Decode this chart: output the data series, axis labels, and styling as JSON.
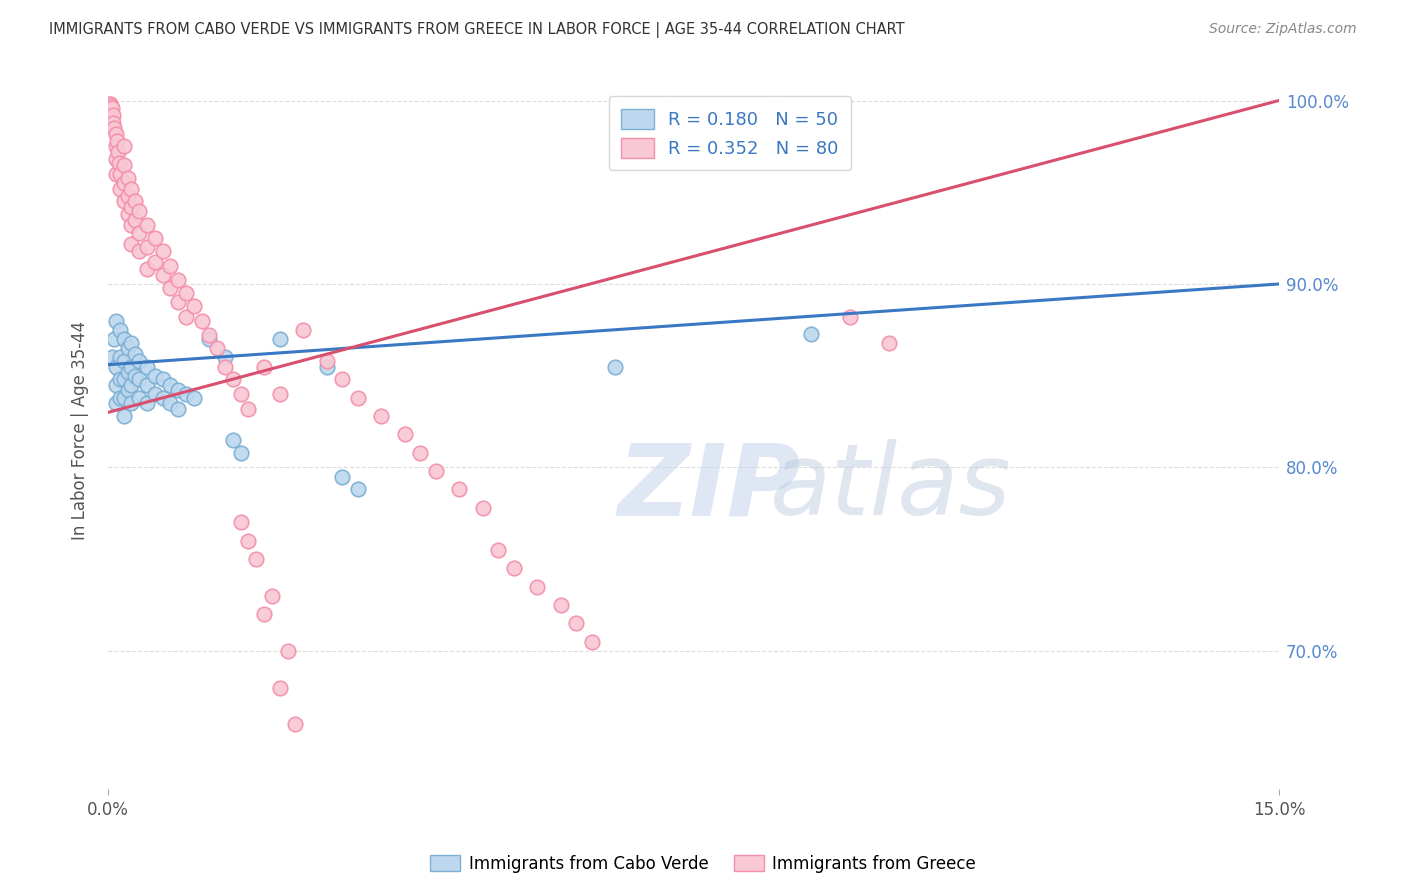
{
  "title": "IMMIGRANTS FROM CABO VERDE VS IMMIGRANTS FROM GREECE IN LABOR FORCE | AGE 35-44 CORRELATION CHART",
  "source": "Source: ZipAtlas.com",
  "xmin": 0.0,
  "xmax": 0.15,
  "ymin": 0.625,
  "ymax": 1.015,
  "ytick_vals": [
    0.7,
    0.8,
    0.9,
    1.0
  ],
  "ytick_labels": [
    "70.0%",
    "80.0%",
    "90.0%",
    "100.0%"
  ],
  "blue_color": "#7BAFD4",
  "pink_color": "#F48FAA",
  "blue_fill": "#BDD7EE",
  "pink_fill": "#F8C8D4",
  "line_blue": "#3B78C3",
  "line_pink": "#D94F6E",
  "legend_label_blue": "Immigrants from Cabo Verde",
  "legend_label_pink": "Immigrants from Greece",
  "blue_scatter": [
    [
      0.0005,
      0.86
    ],
    [
      0.0008,
      0.87
    ],
    [
      0.001,
      0.88
    ],
    [
      0.001,
      0.855
    ],
    [
      0.001,
      0.845
    ],
    [
      0.001,
      0.835
    ],
    [
      0.0015,
      0.875
    ],
    [
      0.0015,
      0.86
    ],
    [
      0.0015,
      0.848
    ],
    [
      0.0015,
      0.838
    ],
    [
      0.002,
      0.87
    ],
    [
      0.002,
      0.858
    ],
    [
      0.002,
      0.848
    ],
    [
      0.002,
      0.838
    ],
    [
      0.002,
      0.828
    ],
    [
      0.0025,
      0.865
    ],
    [
      0.0025,
      0.852
    ],
    [
      0.0025,
      0.842
    ],
    [
      0.003,
      0.868
    ],
    [
      0.003,
      0.855
    ],
    [
      0.003,
      0.845
    ],
    [
      0.003,
      0.835
    ],
    [
      0.0035,
      0.862
    ],
    [
      0.0035,
      0.85
    ],
    [
      0.004,
      0.858
    ],
    [
      0.004,
      0.848
    ],
    [
      0.004,
      0.838
    ],
    [
      0.005,
      0.855
    ],
    [
      0.005,
      0.845
    ],
    [
      0.005,
      0.835
    ],
    [
      0.006,
      0.85
    ],
    [
      0.006,
      0.84
    ],
    [
      0.007,
      0.848
    ],
    [
      0.007,
      0.838
    ],
    [
      0.008,
      0.845
    ],
    [
      0.008,
      0.835
    ],
    [
      0.009,
      0.842
    ],
    [
      0.009,
      0.832
    ],
    [
      0.01,
      0.84
    ],
    [
      0.011,
      0.838
    ],
    [
      0.013,
      0.87
    ],
    [
      0.015,
      0.86
    ],
    [
      0.016,
      0.815
    ],
    [
      0.017,
      0.808
    ],
    [
      0.022,
      0.87
    ],
    [
      0.028,
      0.855
    ],
    [
      0.03,
      0.795
    ],
    [
      0.032,
      0.788
    ],
    [
      0.065,
      0.855
    ],
    [
      0.09,
      0.873
    ]
  ],
  "pink_scatter": [
    [
      0.0002,
      0.998
    ],
    [
      0.0003,
      0.998
    ],
    [
      0.0004,
      0.997
    ],
    [
      0.0005,
      0.996
    ],
    [
      0.0005,
      0.99
    ],
    [
      0.0006,
      0.992
    ],
    [
      0.0007,
      0.988
    ],
    [
      0.0008,
      0.985
    ],
    [
      0.001,
      0.982
    ],
    [
      0.001,
      0.975
    ],
    [
      0.001,
      0.968
    ],
    [
      0.001,
      0.96
    ],
    [
      0.0012,
      0.978
    ],
    [
      0.0013,
      0.972
    ],
    [
      0.0014,
      0.966
    ],
    [
      0.0015,
      0.96
    ],
    [
      0.0015,
      0.952
    ],
    [
      0.002,
      0.975
    ],
    [
      0.002,
      0.965
    ],
    [
      0.002,
      0.955
    ],
    [
      0.002,
      0.945
    ],
    [
      0.0025,
      0.958
    ],
    [
      0.0025,
      0.948
    ],
    [
      0.0025,
      0.938
    ],
    [
      0.003,
      0.952
    ],
    [
      0.003,
      0.942
    ],
    [
      0.003,
      0.932
    ],
    [
      0.003,
      0.922
    ],
    [
      0.0035,
      0.945
    ],
    [
      0.0035,
      0.935
    ],
    [
      0.004,
      0.94
    ],
    [
      0.004,
      0.928
    ],
    [
      0.004,
      0.918
    ],
    [
      0.005,
      0.932
    ],
    [
      0.005,
      0.92
    ],
    [
      0.005,
      0.908
    ],
    [
      0.006,
      0.925
    ],
    [
      0.006,
      0.912
    ],
    [
      0.007,
      0.918
    ],
    [
      0.007,
      0.905
    ],
    [
      0.008,
      0.91
    ],
    [
      0.008,
      0.898
    ],
    [
      0.009,
      0.902
    ],
    [
      0.009,
      0.89
    ],
    [
      0.01,
      0.895
    ],
    [
      0.01,
      0.882
    ],
    [
      0.011,
      0.888
    ],
    [
      0.012,
      0.88
    ],
    [
      0.013,
      0.872
    ],
    [
      0.014,
      0.865
    ],
    [
      0.015,
      0.855
    ],
    [
      0.016,
      0.848
    ],
    [
      0.017,
      0.84
    ],
    [
      0.018,
      0.832
    ],
    [
      0.02,
      0.855
    ],
    [
      0.022,
      0.84
    ],
    [
      0.025,
      0.875
    ],
    [
      0.028,
      0.858
    ],
    [
      0.03,
      0.848
    ],
    [
      0.032,
      0.838
    ],
    [
      0.035,
      0.828
    ],
    [
      0.038,
      0.818
    ],
    [
      0.04,
      0.808
    ],
    [
      0.042,
      0.798
    ],
    [
      0.045,
      0.788
    ],
    [
      0.048,
      0.778
    ],
    [
      0.05,
      0.755
    ],
    [
      0.052,
      0.745
    ],
    [
      0.055,
      0.735
    ],
    [
      0.058,
      0.725
    ],
    [
      0.06,
      0.715
    ],
    [
      0.062,
      0.705
    ],
    [
      0.018,
      0.76
    ],
    [
      0.02,
      0.72
    ],
    [
      0.022,
      0.68
    ],
    [
      0.024,
      0.66
    ],
    [
      0.023,
      0.7
    ],
    [
      0.021,
      0.73
    ],
    [
      0.019,
      0.75
    ],
    [
      0.017,
      0.77
    ],
    [
      0.095,
      0.882
    ],
    [
      0.1,
      0.868
    ]
  ]
}
